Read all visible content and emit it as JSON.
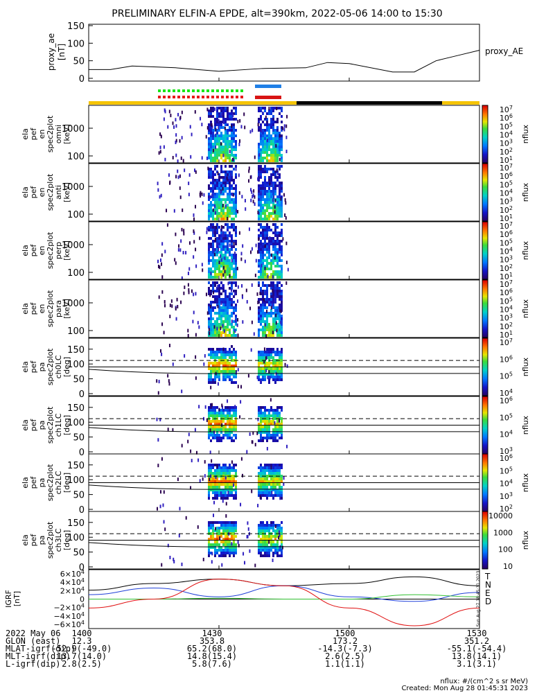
{
  "title": "PRELIMINARY ELFIN-A EPDE, alt=390km, 2022-05-06 14:00 to 15:30",
  "colors": {
    "yellow": "#f5c400",
    "black": "#000000",
    "green_dot": "#19e619",
    "red_dot": "#e61919",
    "blue_bar": "#1f7fe6",
    "red_bar": "#d81414"
  },
  "ae_panel": {
    "ylabel": "proxy_ae\n[nT]",
    "legend": "proxy_AE",
    "ticks": [
      "150",
      "100",
      "50",
      "0"
    ]
  },
  "spectra_panels": [
    {
      "ylabel": [
        "ela",
        "pef",
        "en",
        "spec2plot",
        "omni",
        "[keV]"
      ],
      "ticks": [
        "1000",
        "100"
      ],
      "cb_label": "nflux",
      "cb_ticks": [
        "10^7",
        "10^6",
        "10^5",
        "10^4",
        "10^3",
        "10^2",
        "10^1"
      ]
    },
    {
      "ylabel": [
        "ela",
        "pef",
        "en",
        "spec2plot",
        "anti",
        "[keV]"
      ],
      "ticks": [
        "1000",
        "100"
      ],
      "cb_label": "nflux",
      "cb_ticks": [
        "10^7",
        "10^6",
        "10^5",
        "10^4",
        "10^3",
        "10^2",
        "10^1"
      ]
    },
    {
      "ylabel": [
        "ela",
        "pef",
        "en",
        "spec2plot",
        "perp",
        "[keV]"
      ],
      "ticks": [
        "1000",
        "100"
      ],
      "cb_label": "nflux",
      "cb_ticks": [
        "10^7",
        "10^6",
        "10^5",
        "10^4",
        "10^3",
        "10^2",
        "10^1"
      ]
    },
    {
      "ylabel": [
        "ela",
        "pef",
        "en",
        "spec2plot",
        "para",
        "[keV]"
      ],
      "ticks": [
        "1000",
        "100"
      ],
      "cb_label": "nflux",
      "cb_ticks": [
        "10^7",
        "10^6",
        "10^5",
        "10^4",
        "10^3",
        "10^2",
        "10^1"
      ]
    }
  ],
  "pa_panels": [
    {
      "ylabel": [
        "ela",
        "pef",
        "pa",
        "spec2plot",
        "ch0LC",
        "[deg]"
      ],
      "ticks": [
        "150",
        "100",
        "50",
        "0"
      ],
      "cb_label": "nflux",
      "cb_ticks": [
        "10^7",
        "10^6",
        "10^5",
        "10^4"
      ]
    },
    {
      "ylabel": [
        "ela",
        "pef",
        "pa",
        "spec2plot",
        "ch1LC",
        "[deg]"
      ],
      "ticks": [
        "150",
        "100",
        "50",
        "0"
      ],
      "cb_label": "nflux",
      "cb_ticks": [
        "10^6",
        "10^5",
        "10^4",
        "10^3"
      ]
    },
    {
      "ylabel": [
        "ela",
        "pef",
        "pa",
        "spec2plot",
        "ch2LC",
        "[deg]"
      ],
      "ticks": [
        "150",
        "100",
        "50",
        "0"
      ],
      "cb_label": "nflux",
      "cb_ticks": [
        "10^6",
        "10^5",
        "10^4",
        "10^3",
        "10^2"
      ]
    },
    {
      "ylabel": [
        "ela",
        "pef",
        "pa",
        "spec2plot",
        "ch3LC",
        "[deg]"
      ],
      "ticks": [
        "150",
        "100",
        "50",
        "0"
      ],
      "cb_label": "nflux",
      "cb_ticks": [
        "10000",
        "1000",
        "100",
        "10"
      ]
    }
  ],
  "igrf_panel": {
    "ylabel": [
      "IGRF",
      "[nT]"
    ],
    "ticks": [
      "6×10^4",
      "4×10^4",
      "2×10^4",
      "0",
      "−2×10^4",
      "−4×10^4",
      "−6×10^4"
    ],
    "legend": [
      "T",
      "N",
      "E",
      "D"
    ],
    "legend_colors": [
      "#000000",
      "#1f3fd8",
      "#2fbf2f",
      "#e01010"
    ],
    "side_note": "Sun Aug 27 18:45:31 2023"
  },
  "footer": {
    "rows": [
      {
        "label": "2022 May 06",
        "values": [
          "1400",
          "1430",
          "1500",
          "1530"
        ]
      },
      {
        "label": "GLON (east)",
        "values": [
          "12.3",
          "353.8",
          "173.2",
          "351.2"
        ]
      },
      {
        "label": "MLAT-igrf(dip)",
        "values": [
          "-52.9(-49.0)",
          "65.2(68.0)",
          "-14.3(-7.3)",
          "-55.1(-54.4)"
        ]
      },
      {
        "label": "MLT-igrf(dip)",
        "values": [
          "13.7(14.0)",
          "14.8(15.4)",
          "2.6(2.5)",
          "13.8(14.1)"
        ]
      },
      {
        "label": "L-igrf(dip)",
        "values": [
          "2.8(2.5)",
          "5.8(7.6)",
          "1.1(1.1)",
          "3.1(3.1)"
        ]
      }
    ],
    "unit_note": "nflux: #/(cm^2 s sr MeV)",
    "created": "Created: Mon Aug 28 01:45:31 2023"
  },
  "chart_data": [
    {
      "type": "line",
      "title": "PRELIMINARY ELFIN-A EPDE, alt=390km, 2022-05-06 14:00 to 15:30",
      "ylabel": "proxy_ae [nT]",
      "ylim": [
        0,
        150
      ],
      "series": [
        {
          "name": "proxy_AE",
          "x_minutes": [
            0,
            5,
            10,
            20,
            30,
            40,
            50,
            55,
            60,
            70,
            75,
            80,
            85,
            90
          ],
          "values": [
            25,
            25,
            35,
            30,
            20,
            28,
            30,
            45,
            42,
            18,
            18,
            50,
            65,
            80
          ]
        }
      ]
    },
    {
      "type": "heatmap",
      "name": "omni energy spectrogram",
      "ylabel": "[keV]",
      "scale": "log",
      "ylim": [
        60,
        2000
      ]
    },
    {
      "type": "heatmap",
      "name": "anti energy spectrogram",
      "ylabel": "[keV]",
      "scale": "log",
      "ylim": [
        60,
        2000
      ]
    },
    {
      "type": "heatmap",
      "name": "perp energy spectrogram",
      "ylabel": "[keV]",
      "scale": "log",
      "ylim": [
        60,
        2000
      ]
    },
    {
      "type": "heatmap",
      "name": "para energy spectrogram",
      "ylabel": "[keV]",
      "scale": "log",
      "ylim": [
        60,
        2000
      ]
    },
    {
      "type": "heatmap",
      "name": "ch0LC pitch angle",
      "ylabel": "[deg]",
      "ylim": [
        0,
        180
      ]
    },
    {
      "type": "heatmap",
      "name": "ch1LC pitch angle",
      "ylabel": "[deg]",
      "ylim": [
        0,
        180
      ]
    },
    {
      "type": "heatmap",
      "name": "ch2LC pitch angle",
      "ylabel": "[deg]",
      "ylim": [
        0,
        180
      ]
    },
    {
      "type": "heatmap",
      "name": "ch3LC pitch angle",
      "ylabel": "[deg]",
      "ylim": [
        0,
        180
      ]
    },
    {
      "type": "line",
      "ylabel": "IGRF [nT]",
      "ylim": [
        -60000,
        60000
      ],
      "series": [
        {
          "name": "T",
          "x_minutes": [
            0,
            15,
            30,
            45,
            60,
            75,
            90
          ],
          "values": [
            20000,
            35000,
            45000,
            30000,
            35000,
            50000,
            30000
          ]
        },
        {
          "name": "N",
          "x_minutes": [
            0,
            15,
            30,
            45,
            60,
            75,
            90
          ],
          "values": [
            10000,
            25000,
            5000,
            30000,
            5000,
            -5000,
            15000
          ]
        },
        {
          "name": "E",
          "x_minutes": [
            0,
            15,
            30,
            45,
            60,
            75,
            90
          ],
          "values": [
            0,
            0,
            2000,
            0,
            0,
            10000,
            5000
          ]
        },
        {
          "name": "D",
          "x_minutes": [
            0,
            15,
            30,
            45,
            60,
            75,
            90
          ],
          "values": [
            -20000,
            0,
            45000,
            30000,
            -20000,
            -60000,
            -20000
          ]
        }
      ]
    }
  ]
}
